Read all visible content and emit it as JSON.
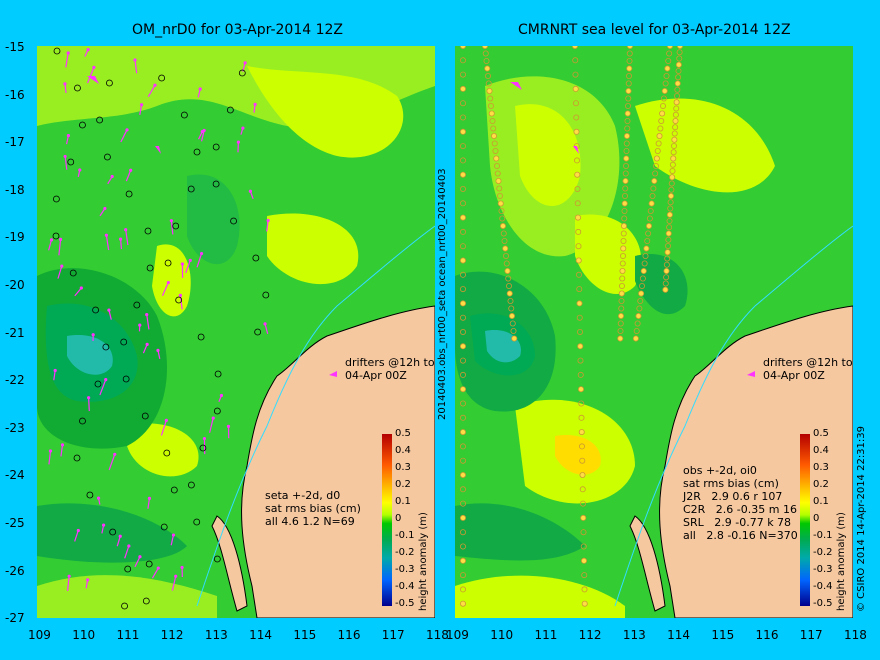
{
  "left_panel": {
    "title": "OM_nrD0 for 03-Apr-2014 12Z",
    "drifters_note": "drifters @12h to\n04-Apr 00Z",
    "stats": "seta +-2d, d0\nsat rms bias (cm)\nall 4.6 1.2 N=69"
  },
  "right_panel": {
    "title": "CMRNRT sea level  for 03-Apr-2014 12Z",
    "drifters_note": "drifters @12h to\n04-Apr 00Z",
    "stats": "obs +-2d, oi0\nsat rms bias (cm)\nJ2R   2.9 0.6 r 107\nC2R   2.6 -0.35 m 16\nSRL   2.9 -0.77 k 78\nall   2.8 -0.16 N=370"
  },
  "axes": {
    "y_ticks": [
      "-15",
      "-16",
      "-17",
      "-18",
      "-19",
      "-20",
      "-21",
      "-22",
      "-23",
      "-24",
      "-25",
      "-26",
      "-27"
    ],
    "left_x_ticks": [
      "109",
      "110",
      "111",
      "112",
      "113",
      "114",
      "115",
      "116",
      "117",
      "118"
    ],
    "right_x_ticks": [
      "109",
      "110",
      "111",
      "112",
      "113",
      "114",
      "115",
      "116",
      "117",
      "118"
    ]
  },
  "colorbar": {
    "title": "height anomaly (m)",
    "ticks": [
      "0.5",
      "0.4",
      "0.3",
      "0.2",
      "0.1",
      "0",
      "-0.1",
      "-0.2",
      "-0.3",
      "-0.4",
      "-0.5"
    ]
  },
  "side_labels": {
    "middle": "20140403.obs_nrt00_seta   ocean_nrt00_20140403",
    "right": "© CSIRO 2014  14-Apr-2014 22:31:39"
  },
  "colors": {
    "background": "#00ccff",
    "land": "#f5c8a0",
    "sea_base": "#33cc33",
    "anomaly_high": "#ccff00",
    "anomaly_low": "#009955",
    "drifter": "#ff33ff"
  }
}
